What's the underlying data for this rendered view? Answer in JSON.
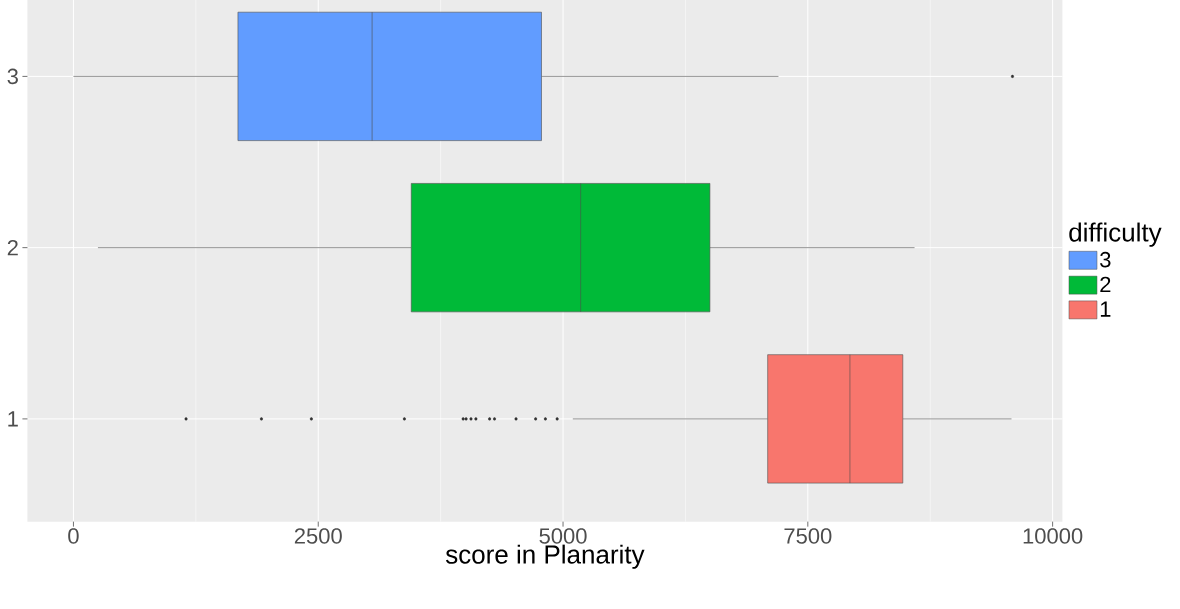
{
  "chart_data": {
    "type": "box",
    "orientation": "horizontal",
    "xlabel": "score in Planarity",
    "legend_title": "difficulty",
    "legend": "right",
    "grid": true,
    "categories": [
      "3",
      "2",
      "1"
    ],
    "xlim": [
      -470,
      10100
    ],
    "xticks": [
      0,
      2500,
      5000,
      7500,
      10000
    ],
    "series": [
      {
        "name": "3",
        "color": "#619cff",
        "boxes": [
          {
            "low": 0,
            "q1": 1680,
            "median": 3050,
            "q3": 4780,
            "high": 7200,
            "outliers": [
              9590
            ]
          },
          null,
          null
        ]
      },
      {
        "name": "2",
        "color": "#00ba38",
        "boxes": [
          null,
          {
            "low": 250,
            "q1": 3450,
            "median": 5180,
            "q3": 6500,
            "high": 8590
          },
          null
        ]
      },
      {
        "name": "1",
        "color": "#f8766d",
        "boxes": [
          null,
          null,
          {
            "low": 5100,
            "q1": 7090,
            "median": 7930,
            "q3": 8470,
            "high": 9580,
            "outliers": [
              1150,
              1920,
              2430,
              3380,
              3980,
              4010,
              4060,
              4110,
              4250,
              4300,
              4520,
              4720,
              4820,
              4940
            ]
          }
        ]
      }
    ]
  }
}
